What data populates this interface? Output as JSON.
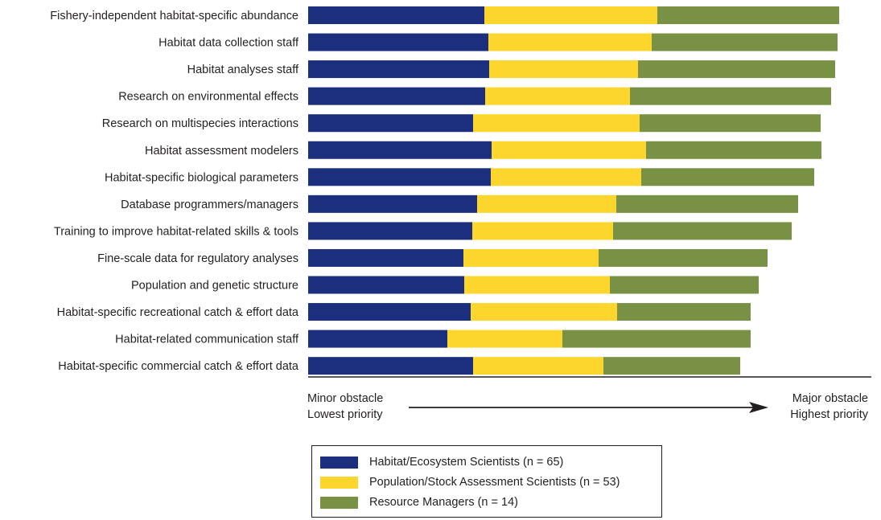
{
  "chart_data": {
    "type": "bar",
    "orientation": "horizontal",
    "stacked": true,
    "categories": [
      "Fishery-independent habitat-specific abundance",
      "Habitat data collection staff",
      "Habitat analyses staff",
      "Research on environmental effects",
      "Research on multispecies interactions",
      "Habitat assessment modelers",
      "Habitat-specific biological parameters",
      "Database programmers/managers",
      "Training to improve habitat-related skills & tools",
      "Fine-scale data for regulatory analyses",
      "Population and genetic structure",
      "Habitat-specific recreational catch & effort data",
      "Habitat-related communication staff",
      "Habitat-specific commercial catch & effort data"
    ],
    "series": [
      {
        "name": "Habitat/Ecosystem Scientists (n = 65)",
        "color": "#1c2f7e",
        "values": [
          219,
          224,
          225,
          220,
          205,
          228,
          227,
          210,
          204,
          193,
          194,
          202,
          173,
          205
        ]
      },
      {
        "name": "Population/Stock Assessment Scientists (n = 53)",
        "color": "#fcd52d",
        "values": [
          215,
          203,
          185,
          180,
          207,
          192,
          187,
          173,
          175,
          168,
          181,
          182,
          143,
          162
        ]
      },
      {
        "name": "Resource Managers (n = 14)",
        "color": "#789144",
        "values": [
          226,
          231,
          245,
          250,
          225,
          218,
          215,
          226,
          222,
          210,
          185,
          166,
          234,
          170
        ]
      }
    ],
    "axis": {
      "left_label": [
        "Minor obstacle",
        "Lowest priority"
      ],
      "right_label": [
        "Major obstacle",
        "Highest priority"
      ],
      "xlim": [
        0,
        700
      ],
      "ticks": false,
      "grid": false
    },
    "legend_position": "bottom-center"
  }
}
